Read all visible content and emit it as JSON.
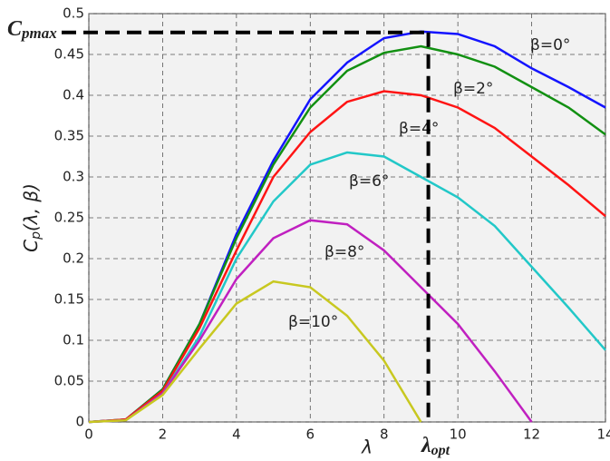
{
  "chart_data": {
    "type": "line",
    "x": [
      0,
      1,
      2,
      3,
      4,
      5,
      6,
      7,
      8,
      9,
      10,
      11,
      12,
      13,
      14
    ],
    "series": [
      {
        "name": "β=0°",
        "color": "#1414ff",
        "values": [
          0,
          0.003,
          0.04,
          0.12,
          0.23,
          0.32,
          0.395,
          0.44,
          0.47,
          0.478,
          0.475,
          0.46,
          0.433,
          0.41,
          0.385
        ]
      },
      {
        "name": "β=2°",
        "color": "#129012",
        "values": [
          0,
          0.003,
          0.04,
          0.12,
          0.225,
          0.315,
          0.385,
          0.43,
          0.452,
          0.46,
          0.45,
          0.435,
          0.41,
          0.385,
          0.352
        ]
      },
      {
        "name": "β=4°",
        "color": "#ff1414",
        "values": [
          0,
          0.003,
          0.038,
          0.115,
          0.21,
          0.3,
          0.355,
          0.392,
          0.405,
          0.4,
          0.385,
          0.36,
          0.325,
          0.29,
          0.252
        ]
      },
      {
        "name": "β=6°",
        "color": "#22c8c8",
        "values": [
          0,
          0.002,
          0.035,
          0.105,
          0.2,
          0.27,
          0.315,
          0.33,
          0.325,
          0.3,
          0.275,
          0.24,
          0.19,
          0.14,
          0.088
        ]
      },
      {
        "name": "β=8°",
        "color": "#c020c0",
        "values": [
          0,
          0.002,
          0.035,
          0.1,
          0.175,
          0.225,
          0.247,
          0.242,
          0.21,
          0.165,
          0.12,
          0.062,
          0,
          null,
          null
        ]
      },
      {
        "name": "β=10°",
        "color": "#c8c820",
        "values": [
          0,
          0.002,
          0.033,
          0.09,
          0.145,
          0.172,
          0.165,
          0.13,
          0.075,
          0,
          null,
          null,
          null,
          null,
          null
        ]
      }
    ],
    "xlim": [
      0,
      14
    ],
    "ylim": [
      0,
      0.5
    ],
    "xticks": [
      0,
      2,
      4,
      6,
      8,
      10,
      12,
      14
    ],
    "yticks": [
      0,
      0.05,
      0.1,
      0.15,
      0.2,
      0.25,
      0.3,
      0.35,
      0.4,
      0.45,
      0.5
    ],
    "grid": true,
    "xlabel": "λ",
    "ylabel": {
      "base": "C",
      "sub": "p",
      "rest": "(λ, β)"
    },
    "cp_max": {
      "text": {
        "base": "C",
        "sub": "pmax"
      },
      "value": 0.477
    },
    "lambda_opt": {
      "text": {
        "base": "λ",
        "sub": "opt"
      },
      "value": 9.2
    }
  }
}
